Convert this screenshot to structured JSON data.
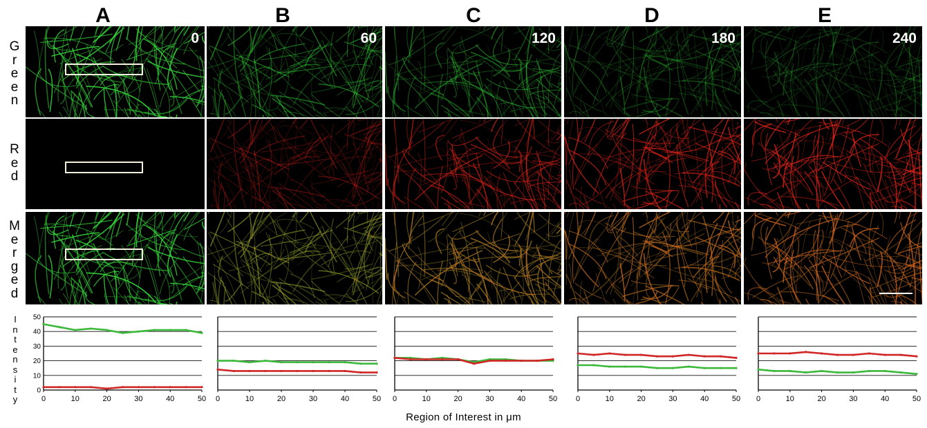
{
  "columns": [
    {
      "letter": "A",
      "time": "0"
    },
    {
      "letter": "B",
      "time": "60"
    },
    {
      "letter": "C",
      "time": "120"
    },
    {
      "letter": "D",
      "time": "180"
    },
    {
      "letter": "E",
      "time": "240"
    }
  ],
  "row_labels": {
    "green": "G\nr\ne\ne\nn",
    "red": "R\ne\nd",
    "merged": "M\ne\nr\ng\ne\nd"
  },
  "y_axis_label": "I\nn\nt\ne\nn\ns\ni\nt\ny",
  "x_axis_title": "Region of Interest in μm",
  "colors": {
    "green_trace": "#3cb83a",
    "red_trace": "#d02626",
    "scale_bar": "#ffffff",
    "roi_box": "#f3f0dd"
  },
  "chart_data": [
    {
      "type": "line",
      "panel": "A",
      "x": [
        0,
        5,
        10,
        15,
        20,
        25,
        30,
        35,
        40,
        45,
        50
      ],
      "xticks": [
        0,
        10,
        20,
        30,
        40,
        50
      ],
      "ylim": [
        0,
        50
      ],
      "yticks": [
        0,
        10,
        20,
        30,
        40,
        50
      ],
      "grid": true,
      "series": [
        {
          "name": "Green",
          "values": [
            45,
            43,
            41,
            42,
            41,
            39,
            40,
            41,
            41,
            41,
            39
          ]
        },
        {
          "name": "Red",
          "values": [
            2,
            2,
            2,
            2,
            1,
            2,
            2,
            2,
            2,
            2,
            2
          ]
        }
      ]
    },
    {
      "type": "line",
      "panel": "B",
      "x": [
        0,
        5,
        10,
        15,
        20,
        25,
        30,
        35,
        40,
        45,
        50
      ],
      "xticks": [
        0,
        10,
        20,
        30,
        40,
        50
      ],
      "ylim": [
        0,
        50
      ],
      "yticks": [
        0,
        10,
        20,
        30,
        40,
        50
      ],
      "grid": true,
      "series": [
        {
          "name": "Green",
          "values": [
            20,
            20,
            19,
            20,
            19,
            19,
            19,
            19,
            19,
            18,
            18
          ]
        },
        {
          "name": "Red",
          "values": [
            14,
            13,
            13,
            13,
            13,
            13,
            13,
            13,
            13,
            12,
            12
          ]
        }
      ]
    },
    {
      "type": "line",
      "panel": "C",
      "x": [
        0,
        5,
        10,
        15,
        20,
        25,
        30,
        35,
        40,
        45,
        50
      ],
      "xticks": [
        0,
        10,
        20,
        30,
        40,
        50
      ],
      "ylim": [
        0,
        50
      ],
      "yticks": [
        0,
        10,
        20,
        30,
        40,
        50
      ],
      "grid": true,
      "series": [
        {
          "name": "Green",
          "values": [
            22,
            22,
            21,
            22,
            21,
            19,
            21,
            21,
            20,
            20,
            20
          ]
        },
        {
          "name": "Red",
          "values": [
            22,
            21,
            21,
            21,
            21,
            18,
            20,
            20,
            20,
            20,
            21
          ]
        }
      ]
    },
    {
      "type": "line",
      "panel": "D",
      "x": [
        0,
        5,
        10,
        15,
        20,
        25,
        30,
        35,
        40,
        45,
        50
      ],
      "xticks": [
        0,
        10,
        20,
        30,
        40,
        50
      ],
      "ylim": [
        0,
        50
      ],
      "yticks": [
        0,
        10,
        20,
        30,
        40,
        50
      ],
      "grid": true,
      "series": [
        {
          "name": "Green",
          "values": [
            17,
            17,
            16,
            16,
            16,
            15,
            15,
            16,
            15,
            15,
            15
          ]
        },
        {
          "name": "Red",
          "values": [
            25,
            24,
            25,
            24,
            24,
            23,
            23,
            24,
            23,
            23,
            22
          ]
        }
      ]
    },
    {
      "type": "line",
      "panel": "E",
      "x": [
        0,
        5,
        10,
        15,
        20,
        25,
        30,
        35,
        40,
        45,
        50
      ],
      "xticks": [
        0,
        10,
        20,
        30,
        40,
        50
      ],
      "ylim": [
        0,
        50
      ],
      "yticks": [
        0,
        10,
        20,
        30,
        40,
        50
      ],
      "grid": true,
      "series": [
        {
          "name": "Green",
          "values": [
            14,
            13,
            13,
            12,
            13,
            12,
            12,
            13,
            13,
            12,
            11
          ]
        },
        {
          "name": "Red",
          "values": [
            25,
            25,
            25,
            26,
            25,
            24,
            24,
            25,
            24,
            24,
            23
          ]
        }
      ]
    }
  ]
}
